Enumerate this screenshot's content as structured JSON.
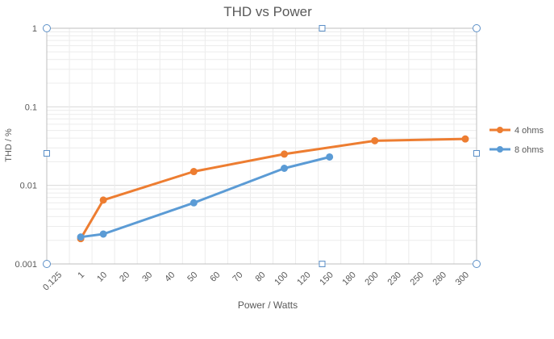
{
  "chart_data": {
    "type": "line",
    "title": "THD vs Power",
    "xlabel": "Power / Watts",
    "ylabel": "THD / %",
    "x_scale": "category",
    "y_scale": "log",
    "ylim": [
      0.001,
      1
    ],
    "y_ticks": [
      "0.001",
      "0.01",
      "0.1",
      "1"
    ],
    "categories": [
      "0.125",
      "1",
      "10",
      "20",
      "30",
      "40",
      "50",
      "60",
      "70",
      "80",
      "100",
      "120",
      "150",
      "180",
      "200",
      "230",
      "250",
      "280",
      "300"
    ],
    "series": [
      {
        "name": "4 ohms",
        "color": "#ED7D31",
        "points": [
          {
            "x": "1",
            "y": 0.0021
          },
          {
            "x": "10",
            "y": 0.0065
          },
          {
            "x": "50",
            "y": 0.015
          },
          {
            "x": "100",
            "y": 0.025
          },
          {
            "x": "200",
            "y": 0.037
          },
          {
            "x": "300",
            "y": 0.039
          }
        ]
      },
      {
        "name": "8 ohms",
        "color": "#5B9BD5",
        "points": [
          {
            "x": "1",
            "y": 0.0022
          },
          {
            "x": "10",
            "y": 0.0024
          },
          {
            "x": "50",
            "y": 0.006
          },
          {
            "x": "100",
            "y": 0.0165
          },
          {
            "x": "150",
            "y": 0.023
          }
        ]
      }
    ],
    "grid": true,
    "legend_position": "right"
  }
}
